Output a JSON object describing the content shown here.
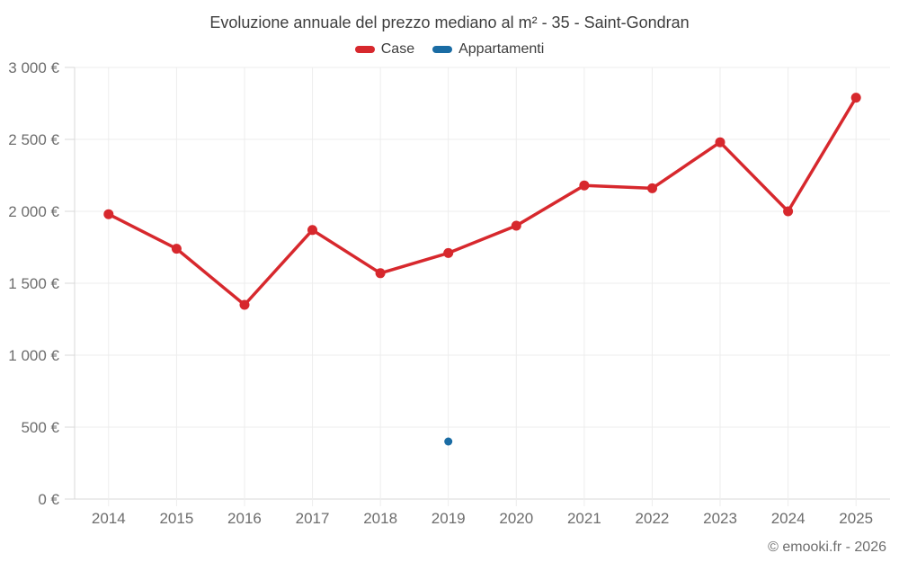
{
  "header": {
    "title": "Evoluzione annuale del prezzo mediano al m² - 35 - Saint-Gondran"
  },
  "legend": {
    "items": [
      {
        "label": "Case",
        "color": "#d7282d"
      },
      {
        "label": "Appartamenti",
        "color": "#1a6ca4"
      }
    ]
  },
  "footer": {
    "credit": "© emooki.fr - 2026"
  },
  "colors": {
    "case_red": "#d7282d",
    "appartamenti_blue": "#1a6ca4",
    "grid": "#ededed",
    "axis": "#d9d9d9",
    "axis_text": "#6d6d6d",
    "title_text": "#3d3d3d"
  },
  "chart_data": {
    "type": "line",
    "title": "Evoluzione annuale del prezzo mediano al m² - 35 - Saint-Gondran",
    "categories": [
      "2014",
      "2015",
      "2016",
      "2017",
      "2018",
      "2019",
      "2020",
      "2021",
      "2022",
      "2023",
      "2024",
      "2025"
    ],
    "series": [
      {
        "name": "Case",
        "color": "#d7282d",
        "values": [
          1980,
          1740,
          1350,
          1870,
          1570,
          1710,
          1900,
          2180,
          2160,
          2480,
          2000,
          2790
        ]
      },
      {
        "name": "Appartamenti",
        "color": "#1a6ca4",
        "values": [
          null,
          null,
          null,
          null,
          null,
          400,
          null,
          null,
          null,
          null,
          null,
          null
        ]
      }
    ],
    "xlabel": "",
    "ylabel": "",
    "ylim": [
      0,
      3000
    ],
    "ytick_step": 500,
    "ytick_labels": [
      "0 €",
      "500 €",
      "1 000 €",
      "1 500 €",
      "2 000 €",
      "2 500 €",
      "3 000 €"
    ],
    "grid": true,
    "legend_position": "top",
    "unit": "€"
  }
}
